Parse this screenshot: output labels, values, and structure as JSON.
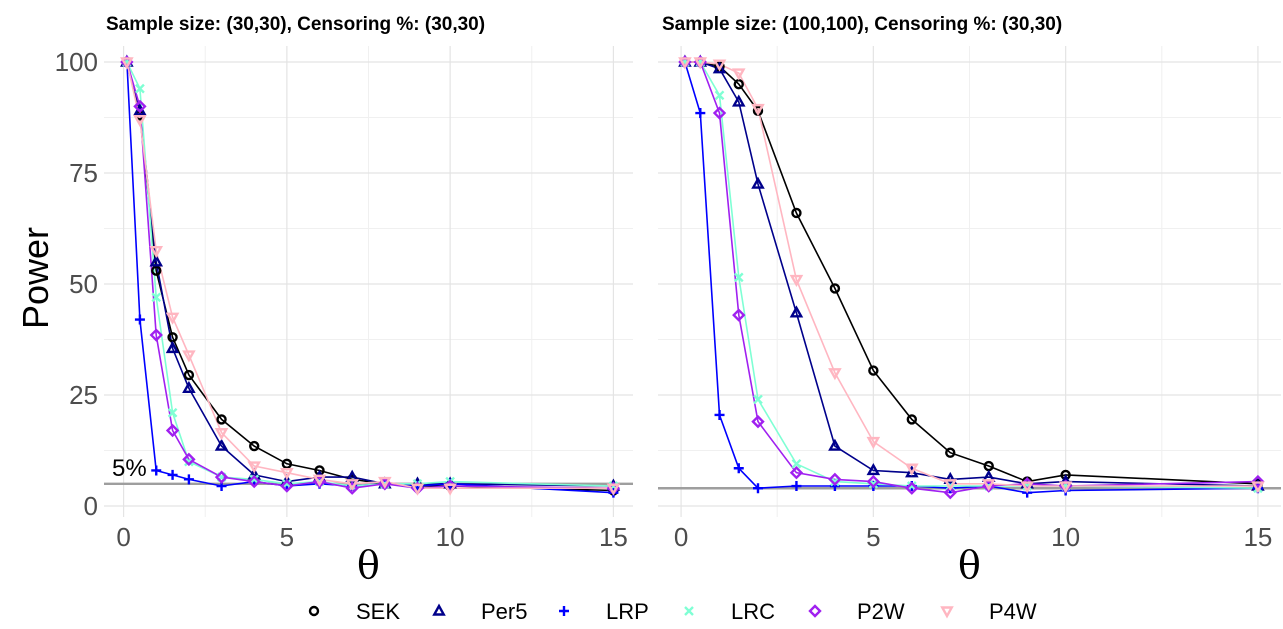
{
  "chart_data": [
    {
      "type": "line",
      "title": "Sample size: (30,30), Censoring %: (30,30)",
      "xlabel": "θ",
      "ylabel": "Power",
      "xlim": [
        -0.6,
        15.6
      ],
      "ylim": [
        0,
        100
      ],
      "xticks": [
        0,
        5,
        10,
        15
      ],
      "yticks": [
        0,
        25,
        50,
        75,
        100
      ],
      "grid": true,
      "reference_line": {
        "y": 5,
        "label": "5%"
      },
      "series": [
        {
          "name": "SEK",
          "x": [
            0.1,
            0.5,
            1,
            1.5,
            2,
            3,
            4,
            5,
            6,
            7,
            8,
            9,
            10,
            15
          ],
          "y": [
            100,
            88,
            53,
            38,
            29.5,
            19.5,
            13.5,
            9.5,
            8,
            6,
            5,
            4.5,
            4.5,
            3.5
          ]
        },
        {
          "name": "Per5",
          "x": [
            0.1,
            0.5,
            1,
            1.5,
            2,
            3,
            4,
            5,
            6,
            7,
            8,
            9,
            10,
            15
          ],
          "y": [
            100,
            89,
            55,
            35.5,
            26.5,
            13.5,
            7,
            5.5,
            6.5,
            6.5,
            5,
            5,
            5,
            4.5
          ]
        },
        {
          "name": "LRP",
          "x": [
            0.1,
            0.5,
            1,
            1.5,
            2,
            3,
            4,
            5,
            6,
            7,
            8,
            9,
            10,
            15
          ],
          "y": [
            100,
            42,
            8,
            7,
            6,
            4.5,
            5.5,
            4.5,
            5,
            4.5,
            5,
            4.5,
            5,
            3
          ]
        },
        {
          "name": "LRC",
          "x": [
            0.1,
            0.5,
            1,
            1.5,
            2,
            3,
            4,
            5,
            6,
            7,
            8,
            9,
            10,
            15
          ],
          "y": [
            100,
            94,
            47,
            21,
            10,
            6.5,
            6,
            5,
            5.5,
            4.5,
            5,
            5,
            5.5,
            4.5
          ]
        },
        {
          "name": "P2W",
          "x": [
            0.1,
            0.5,
            1,
            1.5,
            2,
            3,
            4,
            5,
            6,
            7,
            8,
            9,
            10,
            15
          ],
          "y": [
            100,
            90,
            38.5,
            17,
            10.5,
            6.5,
            5.5,
            4.5,
            5.5,
            4,
            5,
            4,
            4.5,
            4
          ]
        },
        {
          "name": "P4W",
          "x": [
            0.1,
            0.5,
            1,
            1.5,
            2,
            3,
            4,
            5,
            6,
            7,
            8,
            9,
            10,
            15
          ],
          "y": [
            100,
            87,
            57.5,
            42.5,
            34,
            16.5,
            9,
            7.5,
            6,
            5,
            5.5,
            4,
            4,
            4
          ]
        }
      ]
    },
    {
      "type": "line",
      "title": "Sample size: (100,100), Censoring %: (30,30)",
      "xlabel": "θ",
      "ylabel": "",
      "xlim": [
        -0.6,
        15.6
      ],
      "ylim": [
        0,
        100
      ],
      "xticks": [
        0,
        5,
        10,
        15
      ],
      "yticks": [
        0,
        25,
        50,
        75,
        100
      ],
      "grid": true,
      "reference_line": {
        "y": 4,
        "label": ""
      },
      "series": [
        {
          "name": "SEK",
          "x": [
            0.1,
            0.5,
            1,
            1.5,
            2,
            3,
            4,
            5,
            6,
            7,
            8,
            9,
            10,
            15
          ],
          "y": [
            100,
            100,
            99,
            95,
            89,
            66,
            49,
            30.5,
            19.5,
            12,
            9,
            5.5,
            7,
            5
          ]
        },
        {
          "name": "Per5",
          "x": [
            0.1,
            0.5,
            1,
            1.5,
            2,
            3,
            4,
            5,
            6,
            7,
            8,
            9,
            10,
            15
          ],
          "y": [
            100,
            100,
            98.5,
            91,
            72.5,
            43.5,
            13.5,
            8,
            7.5,
            6,
            6.5,
            5,
            5.5,
            4.5
          ]
        },
        {
          "name": "LRP",
          "x": [
            0.1,
            0.5,
            1,
            1.5,
            2,
            3,
            4,
            5,
            6,
            7,
            8,
            9,
            10,
            15
          ],
          "y": [
            100,
            88.5,
            20.5,
            8.5,
            4,
            4.5,
            4.5,
            4.5,
            4.5,
            4,
            4.5,
            3,
            3.5,
            4
          ]
        },
        {
          "name": "LRC",
          "x": [
            0.1,
            0.5,
            1,
            1.5,
            2,
            3,
            4,
            5,
            6,
            7,
            8,
            9,
            10,
            15
          ],
          "y": [
            100,
            100,
            92.5,
            51.5,
            24,
            9.5,
            5.5,
            5,
            4.5,
            4.5,
            4.5,
            4.5,
            4.5,
            4
          ]
        },
        {
          "name": "P2W",
          "x": [
            0.1,
            0.5,
            1,
            1.5,
            2,
            3,
            4,
            5,
            6,
            7,
            8,
            9,
            10,
            15
          ],
          "y": [
            100,
            100,
            88.5,
            43,
            19,
            7.5,
            6,
            5.5,
            4,
            3,
            4.5,
            5,
            4.5,
            5.5
          ]
        },
        {
          "name": "P4W",
          "x": [
            0.1,
            0.5,
            1,
            1.5,
            2,
            3,
            4,
            5,
            6,
            7,
            8,
            9,
            10,
            15
          ],
          "y": [
            100,
            100,
            99.5,
            97.5,
            89.5,
            51,
            30,
            14.5,
            8.5,
            5,
            5,
            4.5,
            4.5,
            4.5
          ]
        }
      ]
    }
  ],
  "legend": {
    "position": "bottom",
    "items": [
      {
        "name": "SEK",
        "color": "#000000",
        "icon": "circle-open"
      },
      {
        "name": "Per5",
        "color": "#00008b",
        "icon": "triangle-open"
      },
      {
        "name": "LRP",
        "color": "#0000ff",
        "icon": "plus"
      },
      {
        "name": "LRC",
        "color": "#7fffd4",
        "icon": "cross"
      },
      {
        "name": "P2W",
        "color": "#a020f0",
        "icon": "diamond-open"
      },
      {
        "name": "P4W",
        "color": "#ffb6c1",
        "icon": "triangle-down-open"
      }
    ]
  }
}
